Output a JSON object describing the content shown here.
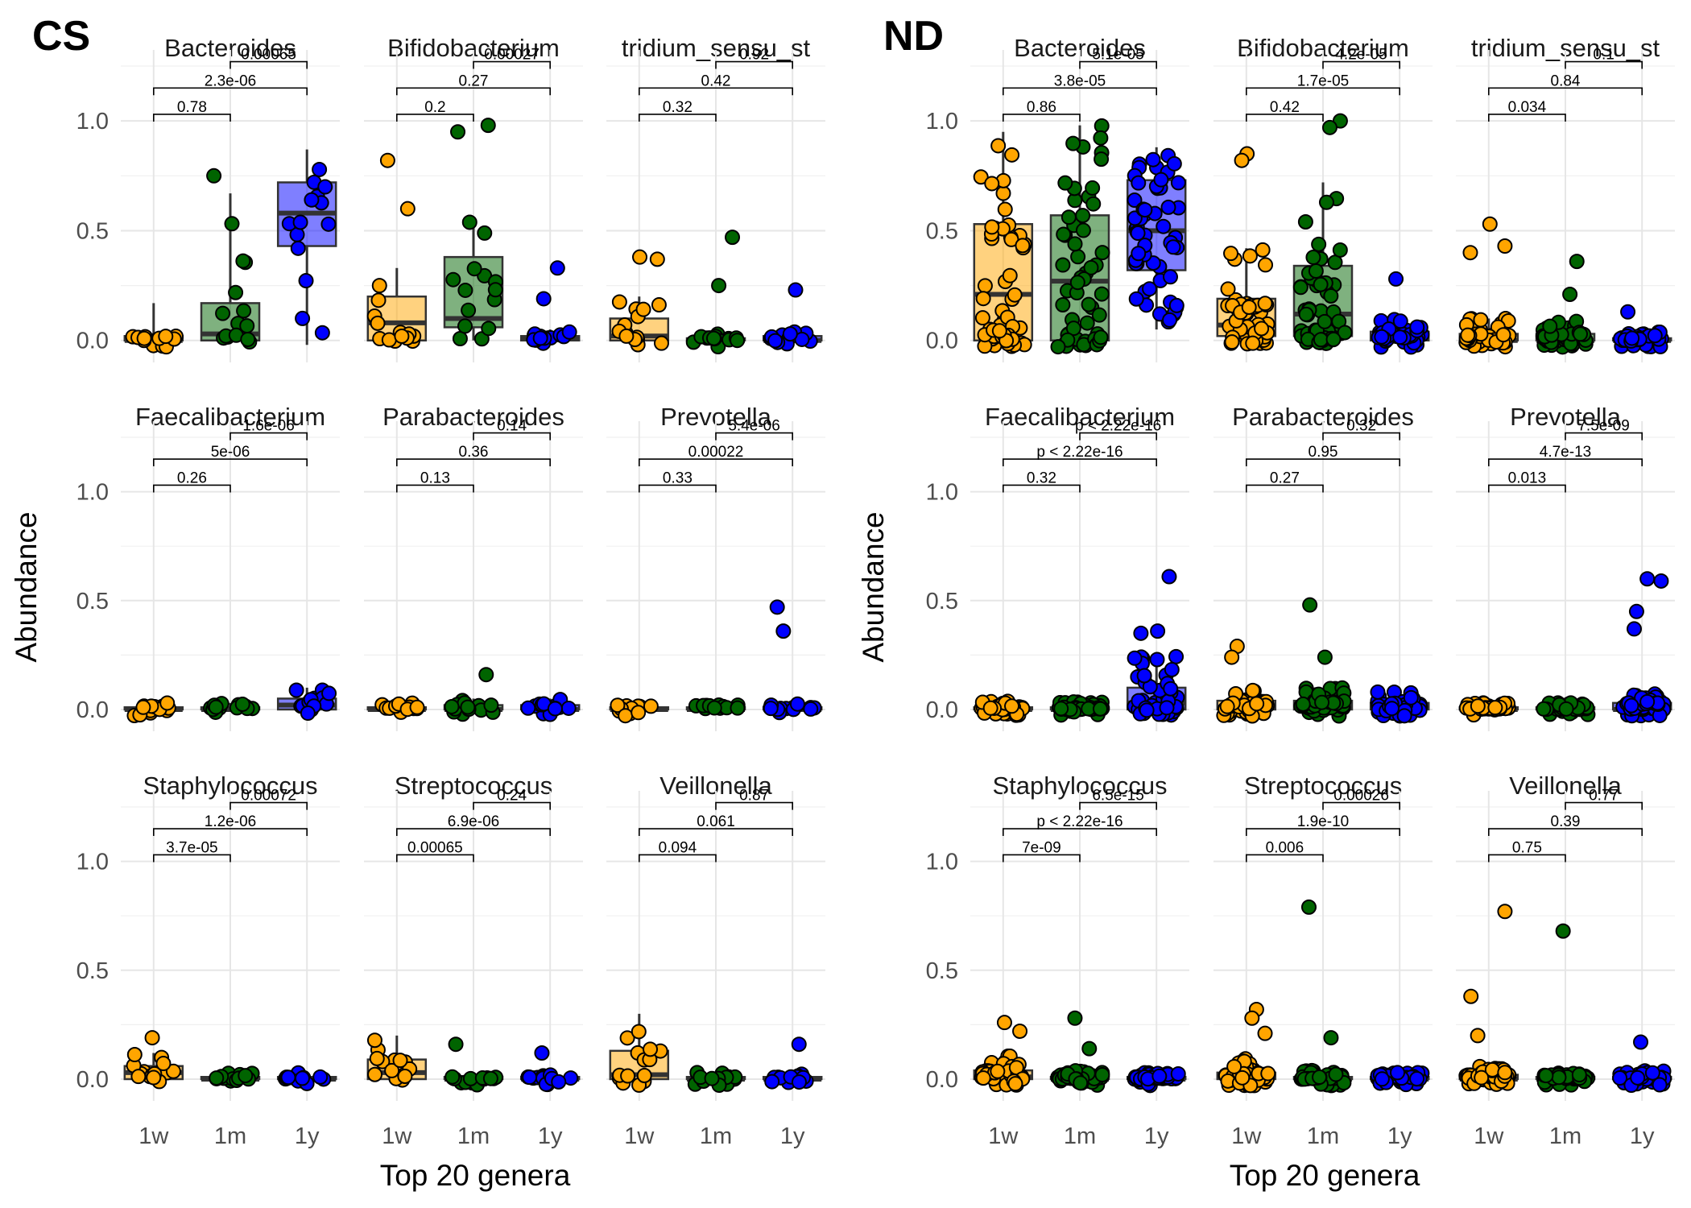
{
  "chart_data": [
    {
      "type": "box",
      "title": "CS",
      "xlabel": "Top 20 genera",
      "ylabel": "Abundance",
      "categories": [
        "1w",
        "1m",
        "1y"
      ],
      "y_ticks": [
        "0.0",
        "0.5",
        "1.0"
      ],
      "ylim": [
        -0.1,
        1.25
      ],
      "colors": {
        "1w": "#FFA500",
        "1m": "#006400",
        "1y": "#0000FF"
      },
      "n_points": [
        14,
        14,
        14
      ],
      "panels": [
        {
          "name": "Bacteroides",
          "boxes": [
            [
              0,
              0,
              0,
              0.02,
              0.17
            ],
            [
              0,
              0,
              0.03,
              0.17,
              0.67
            ],
            [
              -0.02,
              0.43,
              0.58,
              0.72,
              0.87
            ]
          ],
          "outliers": [
            [],
            [
              0.75
            ],
            []
          ],
          "pvalues": [
            "0.78",
            "2.3e-06",
            "0.00065"
          ]
        },
        {
          "name": "Bifidobacterium",
          "boxes": [
            [
              0,
              0,
              0.08,
              0.2,
              0.33
            ],
            [
              0,
              0.06,
              0.1,
              0.38,
              0.55
            ],
            [
              0,
              0,
              0.01,
              0.02,
              0.05
            ]
          ],
          "outliers": [
            [
              0.82,
              0.6
            ],
            [
              0.98,
              0.95
            ],
            [
              0.33,
              0.19
            ]
          ],
          "pvalues": [
            "0.2",
            "0.27",
            "0.00027"
          ]
        },
        {
          "name": "tridium_sensu_st",
          "boxes": [
            [
              0,
              0,
              0.02,
              0.1,
              0.2
            ],
            [
              0,
              0,
              0,
              0.01,
              0.03
            ],
            [
              0,
              0,
              0,
              0.02,
              0.06
            ]
          ],
          "outliers": [
            [
              0.38,
              0.37
            ],
            [
              0.47,
              0.25
            ],
            [
              0.23
            ]
          ],
          "pvalues": [
            "0.32",
            "0.42",
            "0.92"
          ]
        },
        {
          "name": "Faecalibacterium",
          "boxes": [
            [
              0,
              0,
              0,
              0.01,
              0.03
            ],
            [
              0,
              0,
              0,
              0.01,
              0.03
            ],
            [
              0,
              0,
              0.02,
              0.05,
              0.1
            ]
          ],
          "outliers": [
            [],
            [],
            []
          ],
          "pvalues": [
            "0.26",
            "5e-06",
            "1.6e-06"
          ]
        },
        {
          "name": "Parabacteroides",
          "boxes": [
            [
              0,
              0,
              0,
              0.01,
              0.03
            ],
            [
              0,
              0,
              0,
              0.02,
              0.05
            ],
            [
              0,
              0,
              0,
              0.02,
              0.05
            ]
          ],
          "outliers": [
            [],
            [
              0.16
            ],
            []
          ],
          "pvalues": [
            "0.13",
            "0.36",
            "0.14"
          ]
        },
        {
          "name": "Prevotella",
          "boxes": [
            [
              0,
              0,
              0,
              0.01,
              0.02
            ],
            [
              0,
              0,
              0,
              0.01,
              0.02
            ],
            [
              0,
              0,
              0,
              0.01,
              0.03
            ]
          ],
          "outliers": [
            [],
            [],
            [
              0.47,
              0.36
            ]
          ],
          "pvalues": [
            "0.33",
            "0.00022",
            "5.4e-06"
          ]
        },
        {
          "name": "Staphylococcus",
          "boxes": [
            [
              0,
              0,
              0.03,
              0.06,
              0.12
            ],
            [
              0,
              0,
              0,
              0.01,
              0.03
            ],
            [
              0,
              0,
              0,
              0.01,
              0.03
            ]
          ],
          "outliers": [
            [
              0.19
            ],
            [],
            []
          ],
          "pvalues": [
            "3.7e-05",
            "1.2e-06",
            "0.00072"
          ]
        },
        {
          "name": "Streptococcus",
          "boxes": [
            [
              0,
              0,
              0.03,
              0.09,
              0.2
            ],
            [
              0,
              0,
              0,
              0.01,
              0.03
            ],
            [
              0,
              0,
              0,
              0.01,
              0.03
            ]
          ],
          "outliers": [
            [],
            [
              0.16
            ],
            [
              0.12
            ]
          ],
          "pvalues": [
            "0.00065",
            "6.9e-06",
            "0.24"
          ]
        },
        {
          "name": "Veillonella",
          "boxes": [
            [
              0,
              0,
              0.02,
              0.13,
              0.3
            ],
            [
              0,
              0,
              0,
              0.01,
              0.03
            ],
            [
              0,
              0,
              0,
              0.01,
              0.03
            ]
          ],
          "outliers": [
            [],
            [],
            [
              0.16
            ]
          ],
          "pvalues": [
            "0.094",
            "0.061",
            "0.87"
          ]
        }
      ]
    },
    {
      "type": "box",
      "title": "ND",
      "xlabel": "Top 20 genera",
      "ylabel": "Abundance",
      "categories": [
        "1w",
        "1m",
        "1y"
      ],
      "y_ticks": [
        "0.0",
        "0.5",
        "1.0"
      ],
      "ylim": [
        -0.1,
        1.25
      ],
      "colors": {
        "1w": "#FFA500",
        "1m": "#006400",
        "1y": "#0000FF"
      },
      "n_points": [
        55,
        55,
        55
      ],
      "panels": [
        {
          "name": "Bacteroides",
          "boxes": [
            [
              0,
              0,
              0.21,
              0.53,
              0.95
            ],
            [
              0,
              0,
              0.27,
              0.57,
              0.98
            ],
            [
              0.05,
              0.32,
              0.5,
              0.73,
              0.88
            ]
          ],
          "outliers": [
            [],
            [],
            []
          ],
          "pvalues": [
            "0.86",
            "3.8e-05",
            "5.1e-05"
          ]
        },
        {
          "name": "Bifidobacterium",
          "boxes": [
            [
              0,
              0.02,
              0.07,
              0.19,
              0.42
            ],
            [
              0,
              0.02,
              0.12,
              0.34,
              0.72
            ],
            [
              0,
              0,
              0.01,
              0.04,
              0.1
            ]
          ],
          "outliers": [
            [
              0.85,
              0.82
            ],
            [
              1.0,
              0.97
            ],
            [
              0.28
            ]
          ],
          "pvalues": [
            "0.42",
            "1.7e-05",
            "4.2e-05"
          ]
        },
        {
          "name": "tridium_sensu_st",
          "boxes": [
            [
              0,
              0,
              0,
              0.03,
              0.1
            ],
            [
              0,
              0,
              0,
              0.03,
              0.09
            ],
            [
              0,
              0,
              0,
              0.01,
              0.04
            ]
          ],
          "outliers": [
            [
              0.53,
              0.43,
              0.4
            ],
            [
              0.36,
              0.21
            ],
            [
              0.13
            ]
          ],
          "pvalues": [
            "0.034",
            "0.84",
            "0.1"
          ]
        },
        {
          "name": "Faecalibacterium",
          "boxes": [
            [
              0,
              0,
              0,
              0.01,
              0.04
            ],
            [
              0,
              0,
              0,
              0.01,
              0.04
            ],
            [
              0,
              0,
              0.03,
              0.1,
              0.25
            ]
          ],
          "outliers": [
            [],
            [],
            [
              0.61,
              0.36,
              0.35
            ]
          ],
          "pvalues": [
            "0.32",
            "p < 2.22e-16",
            "p < 2.22e-16"
          ]
        },
        {
          "name": "Parabacteroides",
          "boxes": [
            [
              0,
              0,
              0.01,
              0.04,
              0.1
            ],
            [
              0,
              0,
              0.01,
              0.04,
              0.1
            ],
            [
              0,
              0,
              0.01,
              0.03,
              0.08
            ]
          ],
          "outliers": [
            [
              0.29,
              0.24
            ],
            [
              0.48,
              0.24
            ],
            []
          ],
          "pvalues": [
            "0.27",
            "0.95",
            "0.32"
          ]
        },
        {
          "name": "Prevotella",
          "boxes": [
            [
              0,
              0,
              0,
              0.01,
              0.03
            ],
            [
              0,
              0,
              0,
              0.01,
              0.03
            ],
            [
              0,
              0,
              0,
              0.03,
              0.08
            ]
          ],
          "outliers": [
            [],
            [],
            [
              0.6,
              0.59,
              0.45,
              0.37
            ]
          ],
          "pvalues": [
            "0.013",
            "4.7e-13",
            "7.5e-09"
          ]
        },
        {
          "name": "Staphylococcus",
          "boxes": [
            [
              0,
              0,
              0.01,
              0.04,
              0.12
            ],
            [
              0,
              0,
              0,
              0.01,
              0.04
            ],
            [
              0,
              0,
              0,
              0.01,
              0.03
            ]
          ],
          "outliers": [
            [
              0.26,
              0.22
            ],
            [
              0.28,
              0.14
            ],
            []
          ],
          "pvalues": [
            "7e-09",
            "p < 2.22e-16",
            "6.5e-15"
          ]
        },
        {
          "name": "Streptococcus",
          "boxes": [
            [
              0,
              0,
              0.01,
              0.03,
              0.1
            ],
            [
              0,
              0,
              0,
              0.01,
              0.04
            ],
            [
              0,
              0,
              0,
              0.01,
              0.03
            ]
          ],
          "outliers": [
            [
              0.32,
              0.28,
              0.21
            ],
            [
              0.79,
              0.19
            ],
            []
          ],
          "pvalues": [
            "0.006",
            "1.9e-10",
            "0.00026"
          ]
        },
        {
          "name": "Veillonella",
          "boxes": [
            [
              0,
              0,
              0,
              0.02,
              0.06
            ],
            [
              0,
              0,
              0,
              0.01,
              0.03
            ],
            [
              0,
              0,
              0,
              0.01,
              0.04
            ]
          ],
          "outliers": [
            [
              0.77,
              0.38,
              0.2
            ],
            [
              0.68
            ],
            [
              0.17
            ]
          ],
          "pvalues": [
            "0.75",
            "0.39",
            "0.77"
          ]
        }
      ]
    }
  ]
}
